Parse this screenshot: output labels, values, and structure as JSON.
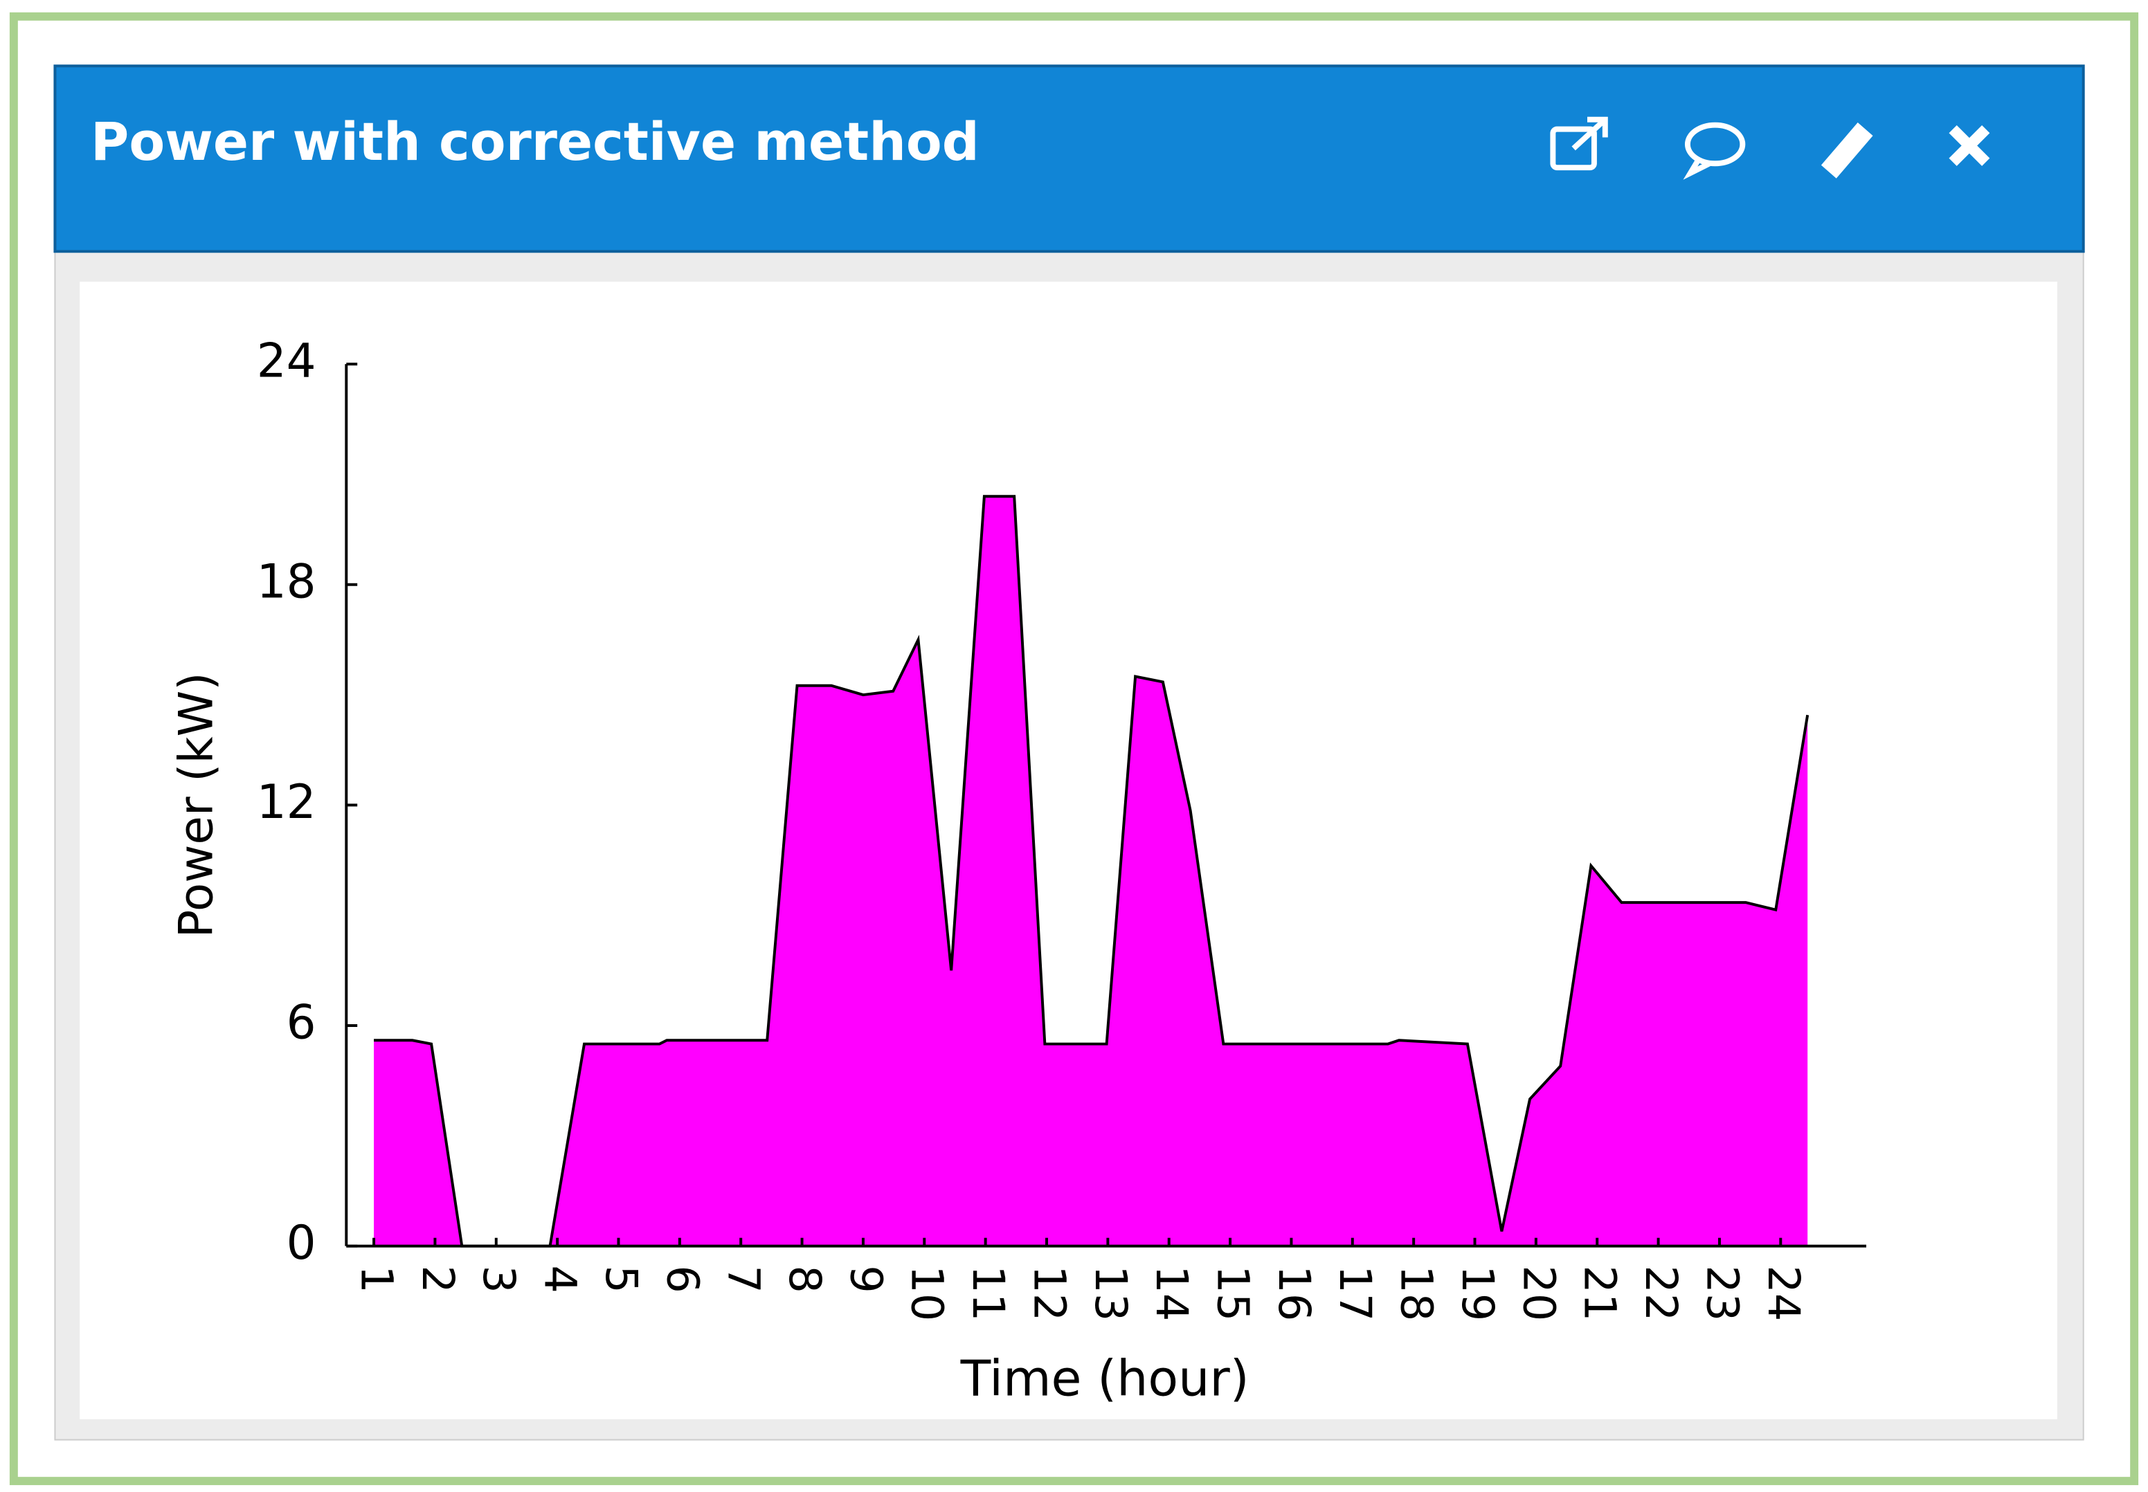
{
  "header": {
    "title": "Power with corrective method"
  },
  "chart_data": {
    "type": "area",
    "y_label": "Power (kW)",
    "x_label": "Time (hour)",
    "color": "#ff00ff",
    "x": [
      1.0,
      1.63,
      1.94,
      2.44,
      3.88,
      4.44,
      5.67,
      5.79,
      7.43,
      7.92,
      8.48,
      9.0,
      9.49,
      9.9,
      10.44,
      10.98,
      11.47,
      11.97,
      12.98,
      13.45,
      13.9,
      14.35,
      14.89,
      17.58,
      17.76,
      18.88,
      19.44,
      19.9,
      20.4,
      20.9,
      21.4,
      23.43,
      23.92,
      24.44
    ],
    "series": [
      {
        "values": [
          5.6,
          5.6,
          5.5,
          0,
          0,
          5.5,
          5.5,
          5.6,
          5.6,
          15.25,
          15.25,
          15.0,
          15.1,
          16.5,
          7.5,
          20.4,
          20.4,
          5.5,
          5.5,
          15.5,
          15.35,
          11.85,
          5.5,
          5.5,
          5.6,
          5.5,
          0.4,
          4.0,
          4.9,
          10.35,
          9.35,
          9.35,
          9.15,
          14.45
        ]
      }
    ],
    "xlim": [
      0.55,
      25.4
    ],
    "xticks": [
      1,
      2,
      3,
      4,
      5,
      6,
      7,
      8,
      9,
      10,
      11,
      12,
      13,
      14,
      15,
      16,
      17,
      18,
      19,
      20,
      21,
      22,
      23,
      24
    ],
    "ylim": [
      0,
      24
    ],
    "yticks": [
      0,
      6,
      12,
      18,
      24
    ]
  }
}
